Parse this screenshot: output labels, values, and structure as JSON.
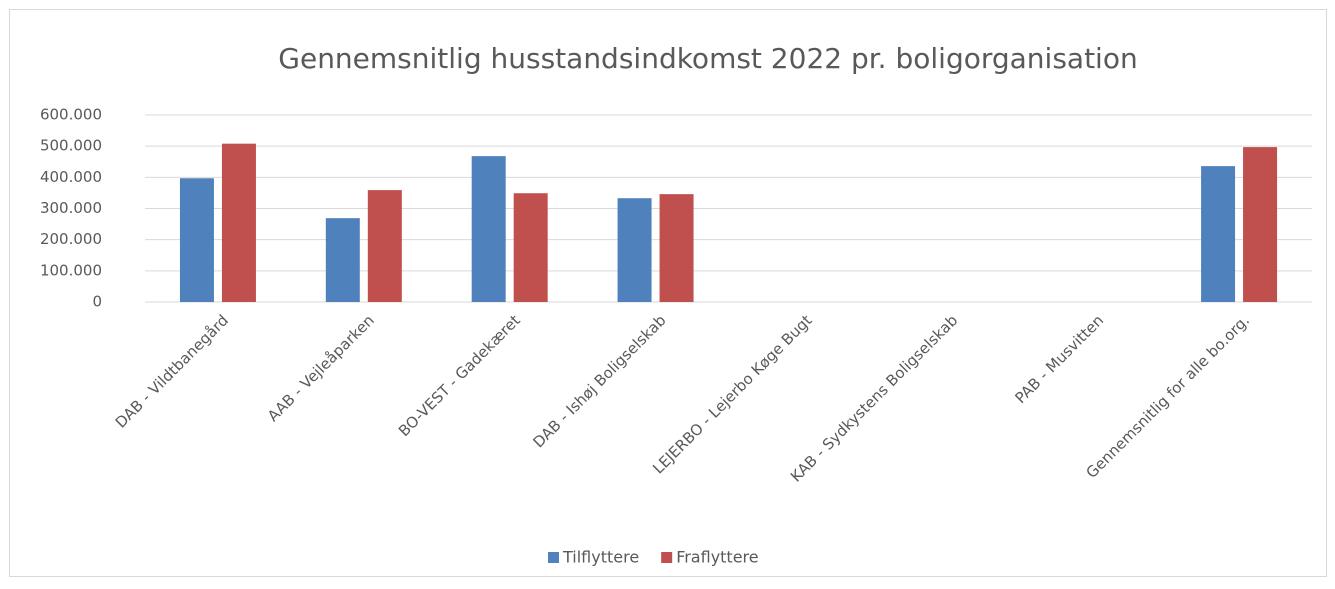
{
  "chart_data": {
    "type": "bar",
    "title": "Gennemsnitlig husstandsindkomst 2022 pr. boligorganisation",
    "categories": [
      "DAB - Vildtbanegård",
      "AAB - Vejleåparken",
      "BO-VEST - Gadekæret",
      "DAB - Ishøj Boligselskab",
      "LEJERBO - Lejerbo Køge Bugt",
      "KAB - Sydkystens Boligselskab",
      "PAB - Musvitten",
      "Gennemsnitlig for alle bo.org."
    ],
    "series": [
      {
        "name": "Tilflyttere",
        "color": "#4f81bd",
        "values": [
          397000,
          269000,
          468000,
          333000,
          null,
          null,
          null,
          436000
        ]
      },
      {
        "name": "Fraflyttere",
        "color": "#c0504d",
        "values": [
          508000,
          359000,
          349000,
          346000,
          null,
          null,
          null,
          497000
        ]
      }
    ],
    "ylim": [
      0,
      600000
    ],
    "yticks": [
      0,
      {
        "value": 100000,
        "label": "100.000"
      },
      {
        "value": 200000,
        "label": "200.000"
      },
      {
        "value": 300000,
        "label": "300.000"
      },
      {
        "value": 400000,
        "label": "400.000"
      },
      {
        "value": 500000,
        "label": "500.000"
      },
      {
        "value": 600000,
        "label": "600.000"
      }
    ],
    "grid": true,
    "legend": "bottom"
  }
}
